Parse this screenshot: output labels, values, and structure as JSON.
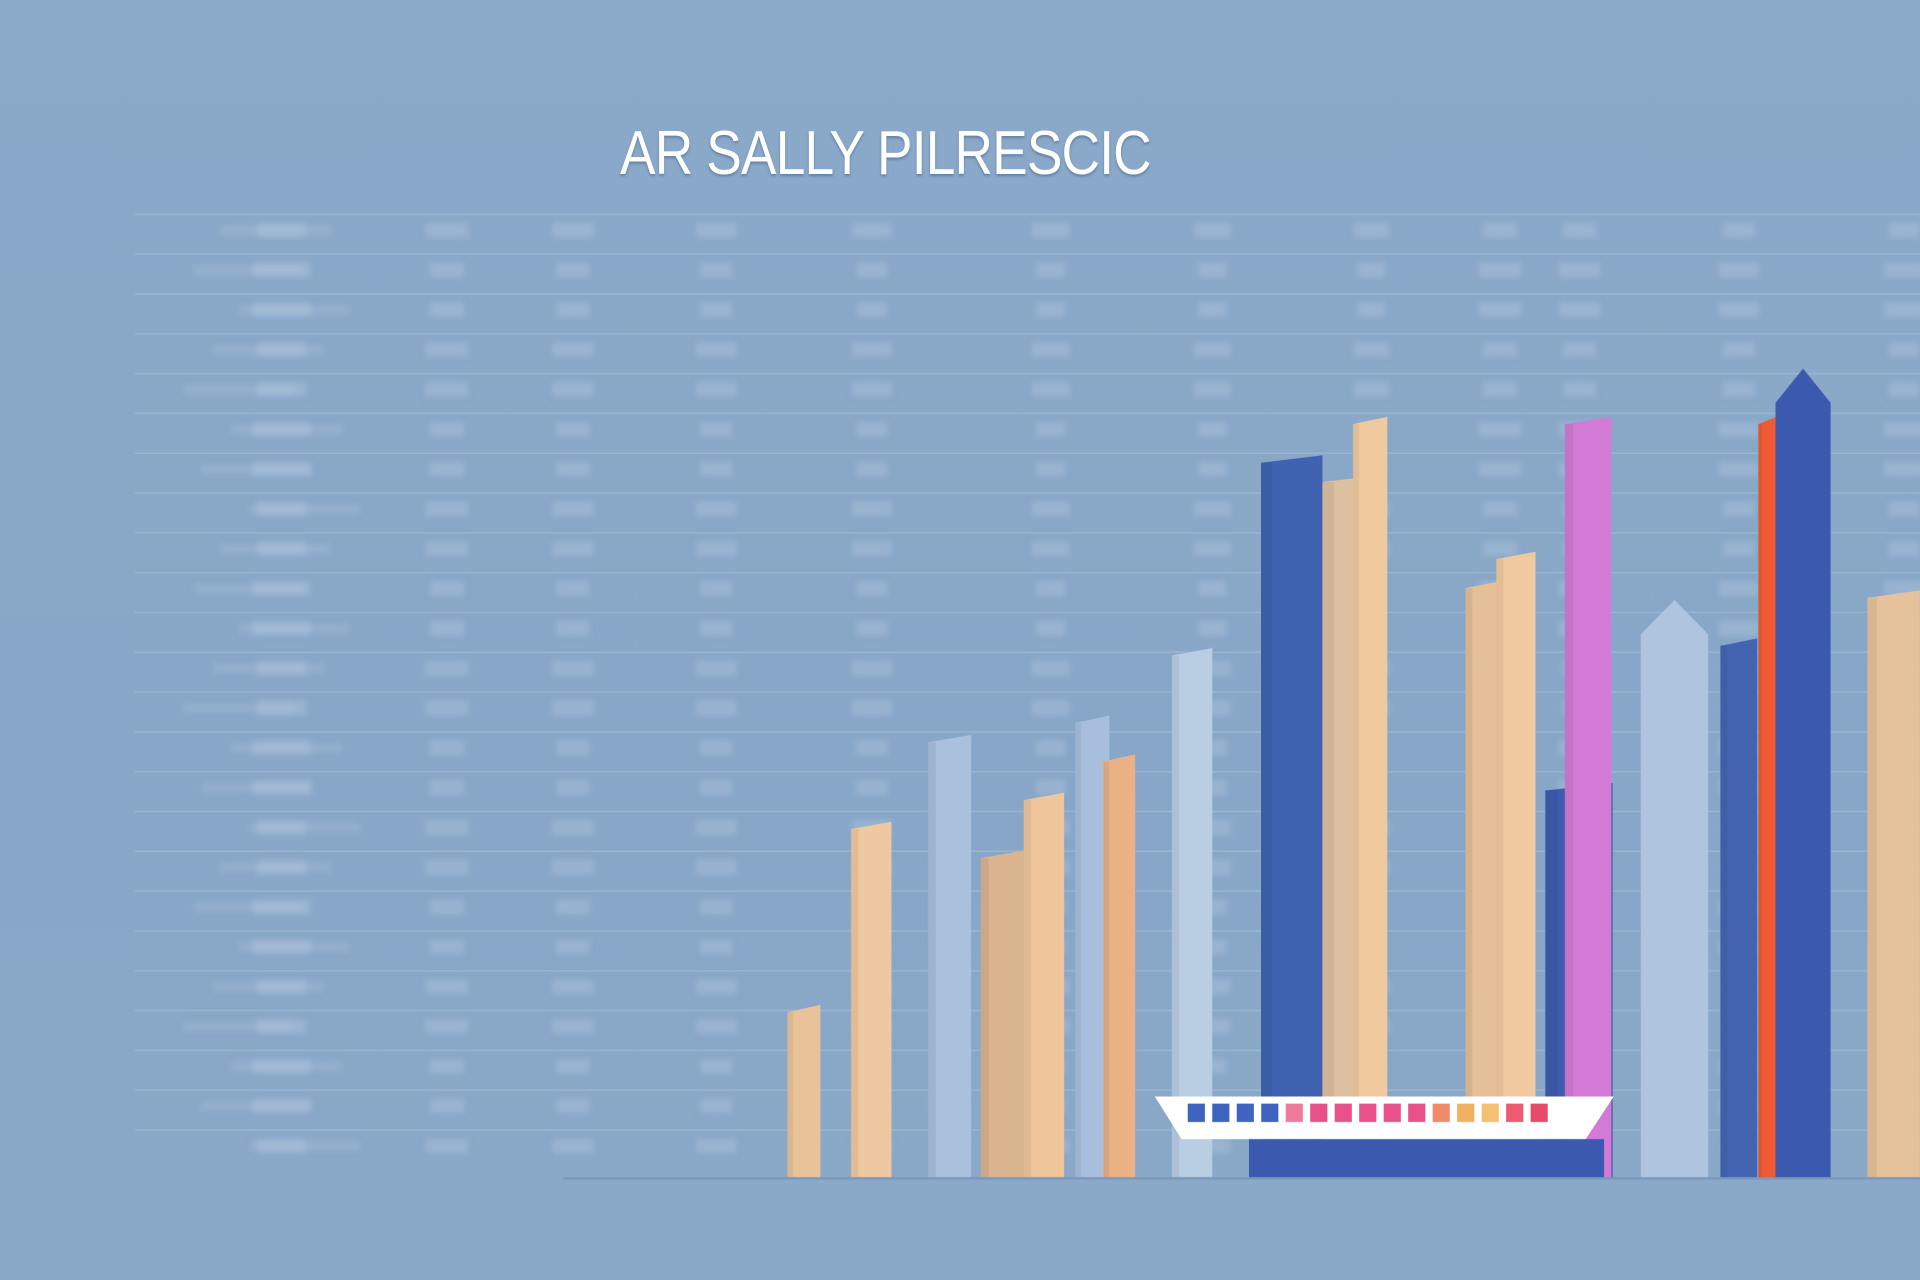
{
  "chart_data": {
    "type": "bar",
    "title": "AR SALLY PILRESCIC",
    "xlabel": "",
    "ylabel": "",
    "grid": true,
    "legend": "none",
    "ylim": [
      0,
      100
    ],
    "values": [
      18,
      37,
      46,
      34,
      40,
      48,
      44,
      55,
      75,
      73,
      79,
      62,
      65,
      41,
      79,
      60,
      56,
      79,
      84,
      61
    ],
    "colors": [
      "#e8c39a",
      "#eec8a0",
      "#a9c1dc",
      "#d9b48f",
      "#efc69c",
      "#a7bfdc",
      "#eab184",
      "#b9cde3",
      "#3f63b0",
      "#dcc0a0",
      "#f0c99f",
      "#e4bf98",
      "#f1c9a0",
      "#3d5cb0",
      "#d27ad6",
      "#afc4de",
      "#4464b2",
      "#ee5a34",
      "#3b5aaf",
      "#e6c29c"
    ]
  },
  "colors": {
    "background": "#8aa8c8",
    "gridline": "#a9c0d8",
    "title": "#ffffff"
  }
}
